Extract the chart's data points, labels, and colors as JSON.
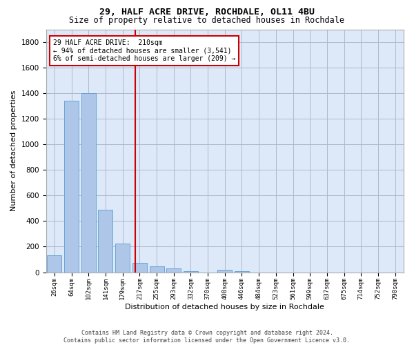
{
  "title1": "29, HALF ACRE DRIVE, ROCHDALE, OL11 4BU",
  "title2": "Size of property relative to detached houses in Rochdale",
  "xlabel": "Distribution of detached houses by size in Rochdale",
  "ylabel": "Number of detached properties",
  "footer1": "Contains HM Land Registry data © Crown copyright and database right 2024.",
  "footer2": "Contains public sector information licensed under the Open Government Licence v3.0.",
  "bar_labels": [
    "26sqm",
    "64sqm",
    "102sqm",
    "141sqm",
    "179sqm",
    "217sqm",
    "255sqm",
    "293sqm",
    "332sqm",
    "370sqm",
    "408sqm",
    "446sqm",
    "484sqm",
    "523sqm",
    "561sqm",
    "599sqm",
    "637sqm",
    "675sqm",
    "714sqm",
    "752sqm",
    "790sqm"
  ],
  "bar_values": [
    135,
    1340,
    1400,
    490,
    225,
    75,
    45,
    28,
    10,
    0,
    20,
    10,
    0,
    0,
    0,
    0,
    0,
    0,
    0,
    0,
    0
  ],
  "bar_color": "#aec6e8",
  "bar_edge_color": "#5a9fd4",
  "annotation_line1": "29 HALF ACRE DRIVE:  210sqm",
  "annotation_line2": "← 94% of detached houses are smaller (3,541)",
  "annotation_line3": "6% of semi-detached houses are larger (209) →",
  "annotation_box_color": "#cc0000",
  "vline_color": "#cc0000",
  "vline_x": 4.74,
  "bg_color": "#dde8f8",
  "grid_color": "#b0b8cc",
  "ylim": [
    0,
    1900
  ],
  "yticks": [
    0,
    200,
    400,
    600,
    800,
    1000,
    1200,
    1400,
    1600,
    1800
  ]
}
